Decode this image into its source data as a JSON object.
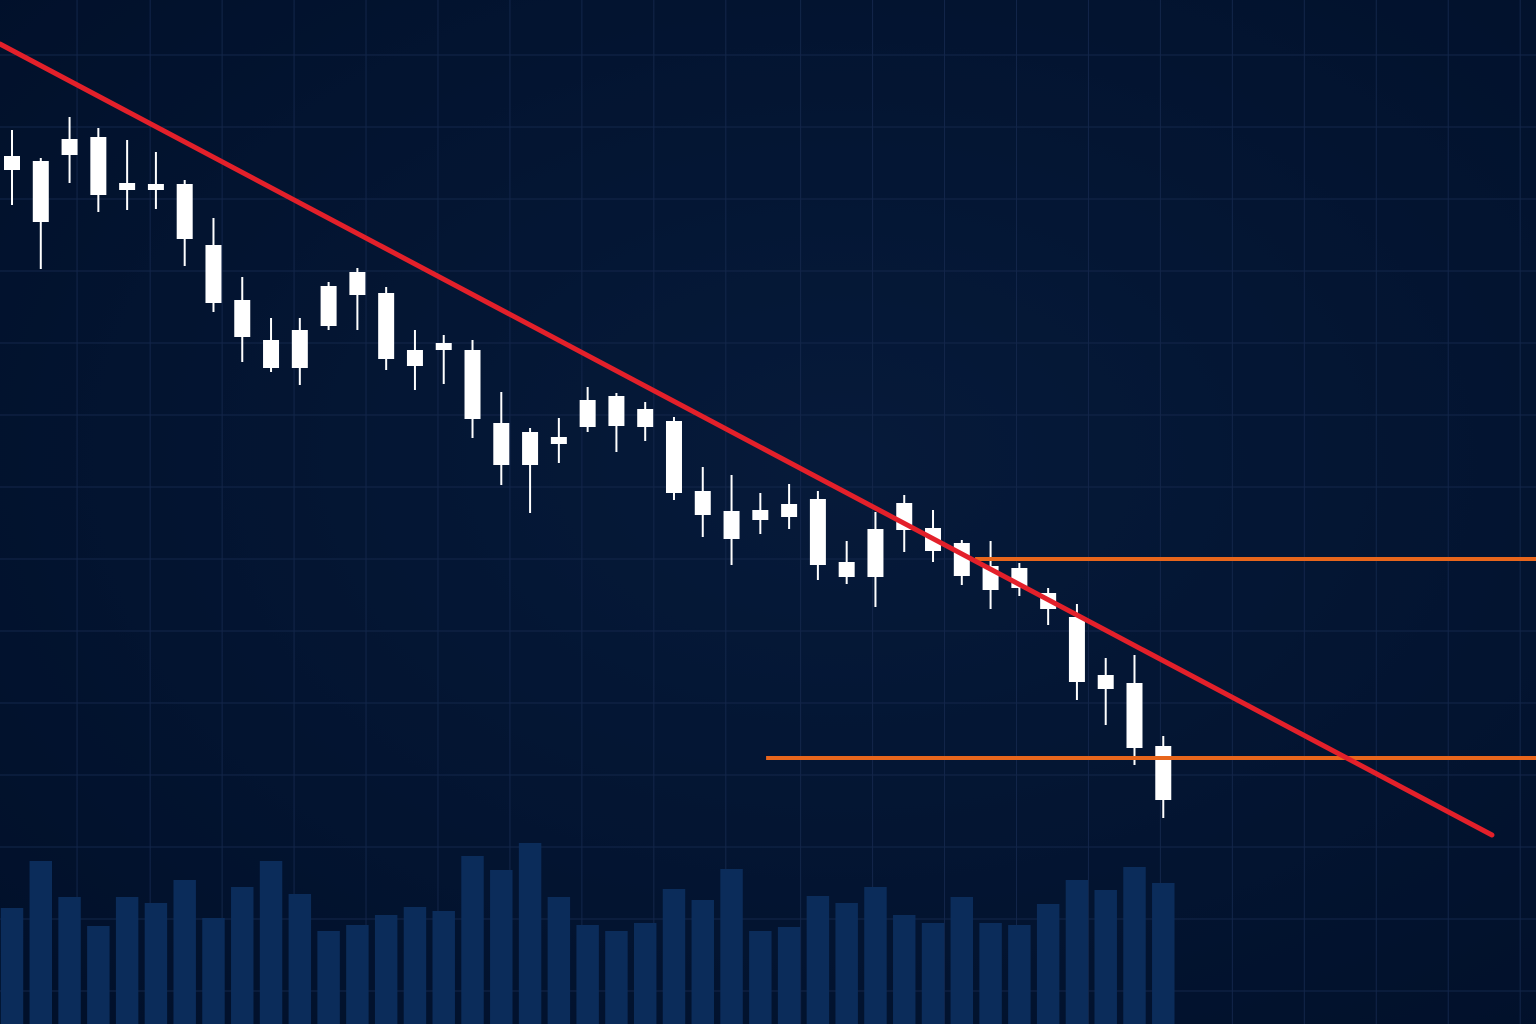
{
  "chart_data": {
    "type": "candlestick",
    "x": [
      0,
      1,
      2,
      3,
      4,
      5,
      6,
      7,
      8,
      9,
      10,
      11,
      12,
      13,
      14,
      15,
      16,
      17,
      18,
      19,
      20,
      21,
      22,
      23,
      24,
      25,
      26,
      27,
      28,
      29,
      30,
      31,
      32,
      33,
      34,
      35,
      36,
      37,
      38,
      39,
      40
    ],
    "open": [
      86.8,
      86.3,
      88.5,
      88.7,
      84.1,
      84.0,
      84.0,
      77.9,
      72.4,
      68.4,
      69.4,
      73.8,
      75.2,
      73.1,
      67.4,
      68.1,
      67.4,
      60.1,
      59.2,
      58.7,
      62.4,
      62.8,
      61.5,
      60.3,
      53.3,
      51.3,
      51.4,
      52.0,
      52.5,
      46.2,
      49.5,
      52.1,
      49.6,
      48.1,
      45.8,
      45.6,
      43.1,
      40.7,
      34.9,
      34.1,
      27.8
    ],
    "high": [
      89.4,
      86.6,
      90.7,
      89.6,
      88.4,
      87.2,
      84.4,
      80.6,
      74.7,
      70.6,
      70.6,
      74.2,
      75.6,
      73.7,
      69.4,
      68.9,
      68.4,
      63.2,
      59.6,
      60.6,
      63.7,
      63.1,
      62.2,
      60.7,
      55.7,
      54.9,
      53.1,
      54.0,
      53.3,
      48.3,
      51.2,
      52.9,
      51.4,
      48.4,
      48.3,
      46.1,
      43.6,
      42.0,
      36.6,
      36.9,
      28.8
    ],
    "low": [
      81.9,
      75.5,
      84.1,
      81.2,
      81.4,
      81.5,
      75.8,
      71.2,
      66.2,
      65.2,
      63.9,
      69.4,
      69.4,
      65.4,
      63.4,
      64.0,
      58.6,
      53.9,
      51.1,
      56.1,
      59.2,
      57.2,
      58.3,
      52.4,
      48.7,
      45.9,
      49.0,
      49.5,
      44.4,
      44.0,
      41.7,
      47.2,
      46.2,
      43.9,
      41.5,
      42.8,
      39.9,
      32.4,
      29.9,
      25.9,
      20.6
    ],
    "close": [
      85.4,
      80.2,
      86.9,
      82.9,
      83.4,
      83.4,
      78.5,
      72.1,
      68.7,
      65.6,
      65.6,
      69.8,
      72.9,
      66.5,
      65.8,
      67.4,
      60.5,
      55.9,
      55.9,
      58.0,
      59.7,
      59.8,
      59.7,
      53.1,
      50.9,
      48.5,
      50.4,
      50.7,
      45.9,
      44.7,
      44.7,
      49.4,
      47.3,
      44.8,
      43.4,
      43.6,
      41.5,
      34.2,
      33.5,
      27.6,
      22.4
    ],
    "volume": [
      116,
      163,
      127,
      98,
      127,
      121,
      144,
      106,
      137,
      163,
      130,
      93,
      99,
      109,
      117,
      113,
      168,
      154,
      181,
      127,
      99,
      93,
      101,
      135,
      124,
      155,
      93,
      97,
      128,
      121,
      137,
      109,
      101,
      127,
      101,
      99,
      120,
      144,
      134,
      157,
      141
    ],
    "candle_color": "#ffffff",
    "volume_color": "#0b2c5a",
    "xlim": [
      -0.417,
      52.95
    ],
    "ylim": [
      0,
      102.4
    ],
    "y2lim": [
      0,
      1024
    ],
    "xticks": [
      2.26,
      4.8,
      7.3,
      9.8,
      12.3,
      14.8,
      17.3,
      19.8,
      22.3,
      24.8,
      27.4,
      29.9,
      32.4,
      34.9,
      37.4,
      39.9,
      42.4,
      44.9,
      47.4,
      49.9,
      52.4
    ],
    "yticks": [
      96.9,
      89.7,
      82.5,
      75.3,
      68.1,
      60.9,
      53.7,
      46.5,
      39.3,
      32.1,
      24.9,
      17.7,
      10.5,
      3.3
    ],
    "grid": true,
    "grid_color": "#13264a",
    "trendline": {
      "from": [
        -0.417,
        98.0
      ],
      "to": [
        51.42,
        18.9
      ],
      "color": "#e3202a"
    },
    "levels": [
      {
        "value": 46.5,
        "from": 33.46,
        "color": "#e8661c"
      },
      {
        "value": 26.6,
        "from": 26.2,
        "color": "#e8661c"
      }
    ]
  }
}
